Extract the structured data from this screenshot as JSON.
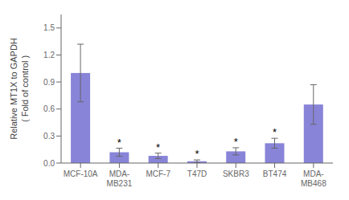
{
  "chart_data": {
    "type": "bar",
    "categories": [
      "MCF-10A",
      "MDA-\nMB231",
      "MCF-7",
      "T47D",
      "SKBR3",
      "BT474",
      "MDA-\nMB468"
    ],
    "values": [
      1.0,
      0.12,
      0.08,
      0.02,
      0.13,
      0.22,
      0.65
    ],
    "errors": [
      0.32,
      0.045,
      0.03,
      0.015,
      0.04,
      0.055,
      0.22
    ],
    "annotations": [
      {
        "category": "MDA-\nMB231",
        "text": "*"
      },
      {
        "category": "MCF-7",
        "text": "*"
      },
      {
        "category": "T47D",
        "text": "*"
      },
      {
        "category": "SKBR3",
        "text": "*"
      },
      {
        "category": "BT474",
        "text": "*"
      }
    ],
    "ylabel": "Relative MT1X to GAPDH\n( Fold of control )",
    "ylim": [
      0,
      1.65
    ],
    "yticks": [
      {
        "value": 0,
        "label": "0.0"
      },
      0.3,
      0.6,
      0.9,
      1.2,
      1.5
    ],
    "color": "#8884d8",
    "grid": false
  }
}
